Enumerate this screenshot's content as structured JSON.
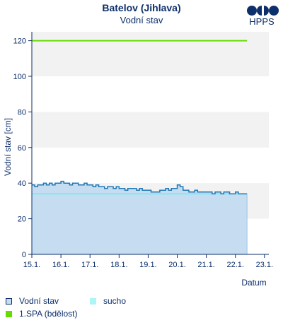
{
  "header": {
    "title": "Batelov (Jihlava)",
    "subtitle": "Vodní stav",
    "logo_text": "HPPS"
  },
  "chart_data": {
    "type": "line",
    "title": "Batelov (Jihlava)",
    "subtitle": "Vodní stav",
    "ylabel": "Vodní stav [cm]",
    "xlabel": "Datum",
    "ylim": [
      0,
      125
    ],
    "xlim": [
      0,
      8.15
    ],
    "y_ticks": [
      0,
      20,
      40,
      60,
      80,
      100,
      120
    ],
    "x_tick_labels": [
      "15.1.",
      "16.1.",
      "17.1.",
      "18.1.",
      "19.1.",
      "20.1.",
      "21.1.",
      "22.1.",
      "23.1."
    ],
    "grid": "alternating horizontal bands",
    "series": [
      {
        "name": "Vodní stav",
        "color": "#1f78b4",
        "fill": "#c5dcf1",
        "x": [
          0.0,
          0.1,
          0.2,
          0.3,
          0.4,
          0.5,
          0.6,
          0.7,
          0.8,
          0.9,
          1.0,
          1.1,
          1.2,
          1.3,
          1.4,
          1.5,
          1.6,
          1.7,
          1.8,
          1.9,
          2.0,
          2.1,
          2.2,
          2.3,
          2.4,
          2.5,
          2.6,
          2.7,
          2.8,
          2.9,
          3.0,
          3.1,
          3.2,
          3.3,
          3.4,
          3.5,
          3.6,
          3.7,
          3.8,
          3.9,
          4.0,
          4.1,
          4.2,
          4.3,
          4.4,
          4.5,
          4.6,
          4.7,
          4.8,
          4.9,
          5.0,
          5.1,
          5.2,
          5.3,
          5.4,
          5.5,
          5.6,
          5.7,
          5.8,
          5.9,
          6.0,
          6.1,
          6.2,
          6.3,
          6.4,
          6.5,
          6.6,
          6.7,
          6.8,
          6.9,
          7.0,
          7.1,
          7.2,
          7.3,
          7.4
        ],
        "values": [
          39,
          38,
          39,
          39,
          40,
          39,
          40,
          39,
          40,
          40,
          41,
          40,
          40,
          39,
          40,
          40,
          39,
          39,
          40,
          39,
          39,
          38,
          39,
          38,
          38,
          37,
          38,
          38,
          37,
          38,
          37,
          37,
          36,
          37,
          37,
          37,
          36,
          37,
          36,
          36,
          36,
          35,
          35,
          35,
          36,
          36,
          37,
          36,
          37,
          37,
          39,
          38,
          36,
          36,
          35,
          35,
          36,
          35,
          35,
          35,
          35,
          35,
          34,
          35,
          35,
          34,
          35,
          35,
          34,
          34,
          35,
          34,
          34,
          34,
          34
        ]
      },
      {
        "name": "sucho",
        "color": "#5ff0f0",
        "fill": "#bde8f6",
        "x": [
          0.0,
          7.4
        ],
        "values": [
          34,
          34
        ]
      },
      {
        "name": "1.SPA (bdělost)",
        "color": "#66dd00",
        "x": [
          0.0,
          7.4
        ],
        "values": [
          120,
          120
        ]
      }
    ],
    "legend": [
      {
        "name": "Vodní stav",
        "color": "#c5dcf1",
        "border": "#0d2f6b"
      },
      {
        "name": "sucho",
        "color": "#aef5f5",
        "border": "#aef5f5"
      },
      {
        "name": "1.SPA (bdělost)",
        "color": "#66dd00",
        "border": "#66dd00"
      }
    ]
  }
}
